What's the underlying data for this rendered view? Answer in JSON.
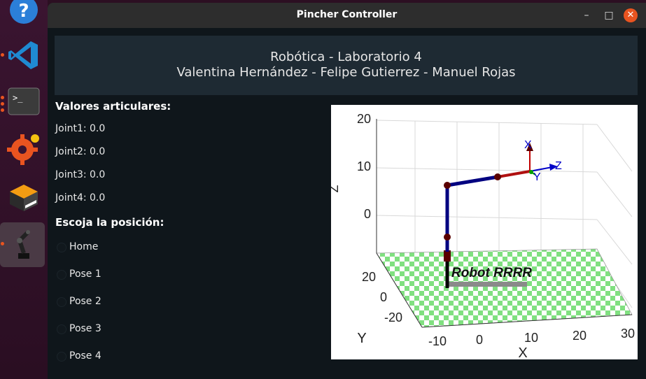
{
  "dock": {
    "items": [
      {
        "name": "help-icon"
      },
      {
        "name": "vscode-icon"
      },
      {
        "name": "terminal-icon",
        "glyph": ">_"
      },
      {
        "name": "software-updater-icon"
      },
      {
        "name": "file-manager-icon"
      },
      {
        "name": "robot-app-icon"
      }
    ]
  },
  "window": {
    "title": "Pincher Controller",
    "minimize_glyph": "–",
    "maximize_glyph": "□",
    "close_glyph": "✕"
  },
  "header": {
    "line1": "Robótica - Laboratorio 4",
    "line2": "Valentina Hernández - Felipe Gutierrez - Manuel Rojas"
  },
  "joints": {
    "title": "Valores articulares:",
    "items": [
      "Joint1: 0.0",
      "Joint2: 0.0",
      "Joint3: 0.0",
      "Joint4: 0.0"
    ]
  },
  "pose": {
    "title": "Escoja la posición:",
    "options": [
      "Home",
      "Pose 1",
      "Pose 2",
      "Pose 3",
      "Pose 4"
    ],
    "selected": null
  },
  "plot": {
    "label": "Robot RRRR",
    "z_ticks": [
      "20",
      "10",
      "0"
    ],
    "y_ticks": [
      "20",
      "0",
      "-20"
    ],
    "x_ticks": [
      "-10",
      "0",
      "10",
      "20",
      "30"
    ],
    "z_axis": "Z",
    "y_axis": "Y",
    "x_axis": "X",
    "frame": {
      "x": "X",
      "y": "Y",
      "z": "Z"
    },
    "colors": {
      "link": "#000080",
      "joint": "#5a0000",
      "floor_a": "#80e080",
      "floor_b": "#ffffff",
      "frame_x": "#0000c8",
      "frame_y": "#00a000",
      "frame_z": "#c00000"
    }
  }
}
